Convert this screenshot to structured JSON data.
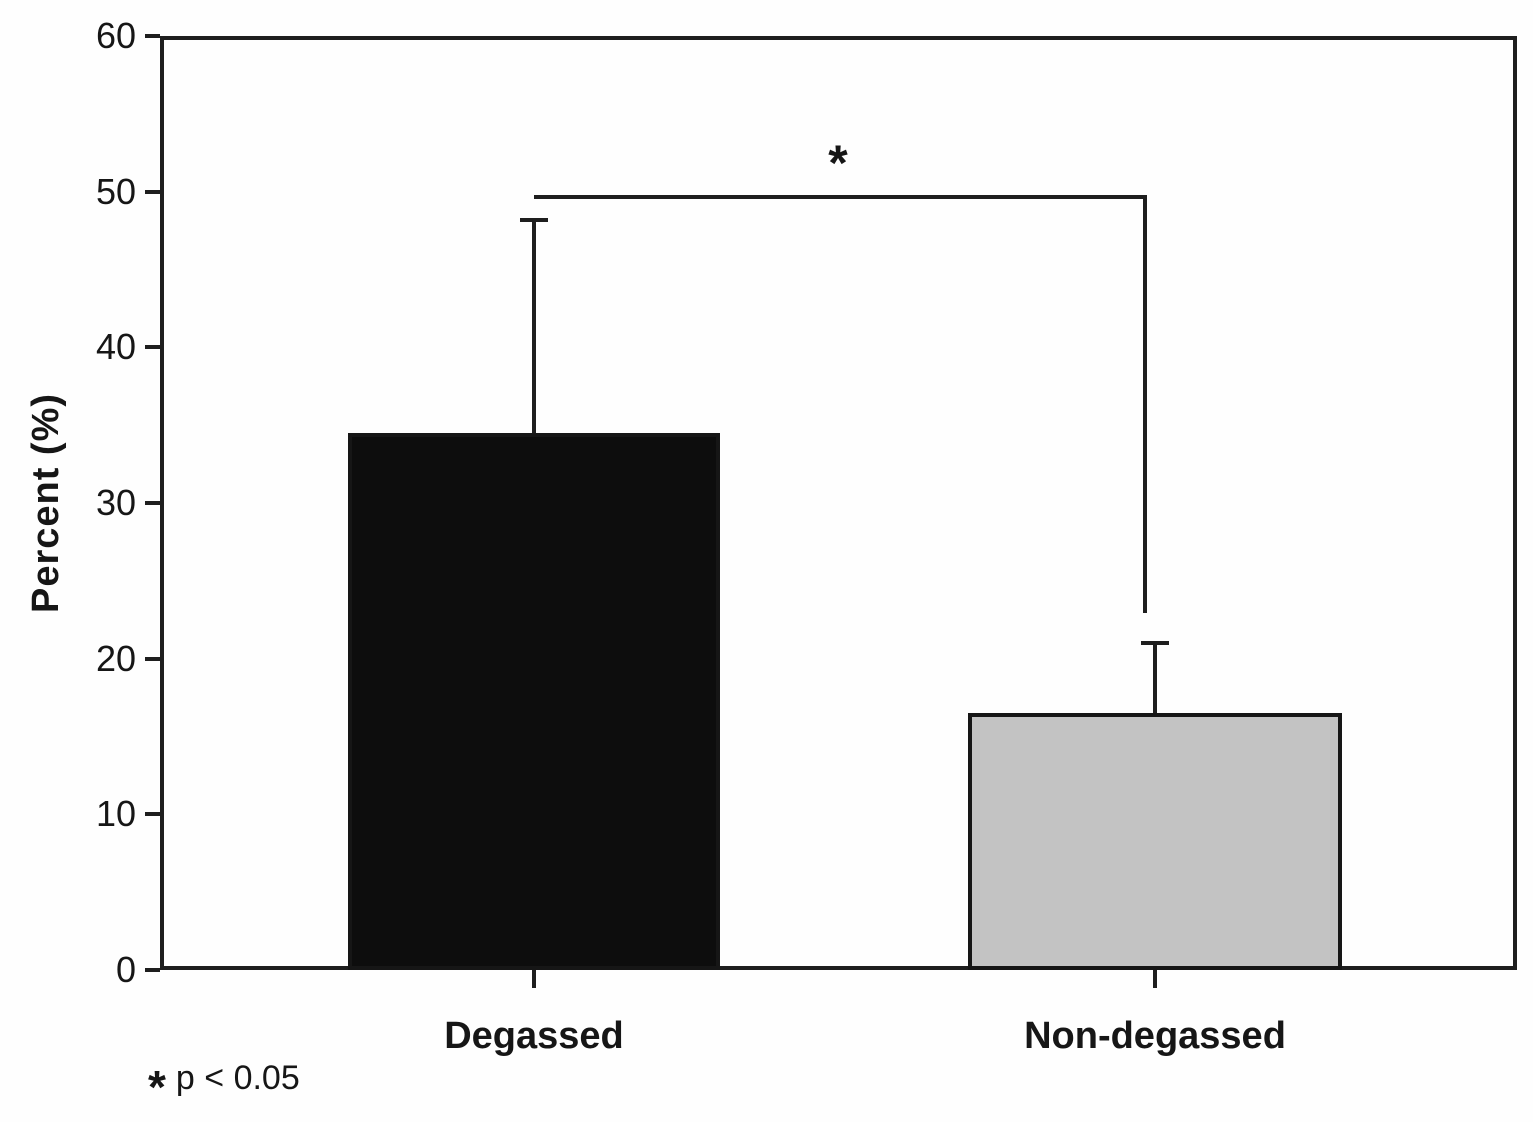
{
  "figure": {
    "background_color": "#fefefe"
  },
  "chart_data": {
    "type": "bar",
    "title": "",
    "xlabel": "",
    "ylabel": "Percent (%)",
    "categories": [
      "Degassed",
      "Non-degassed"
    ],
    "values": [
      34.5,
      16.5
    ],
    "error_top_values": [
      48.2,
      21.0
    ],
    "bar_colors": [
      "#0d0d0d",
      "#c3c3c3"
    ],
    "bar_border_color": "#161616",
    "axis_color": "#1e1e1e",
    "text_color": "#161616",
    "ylim": [
      0,
      60
    ],
    "yticks": [
      0,
      10,
      20,
      30,
      40,
      50,
      60
    ],
    "grid": false,
    "legend": false,
    "significance": {
      "marker": "*",
      "compares": [
        "Degassed",
        "Non-degassed"
      ]
    },
    "footnote": {
      "marker": "*",
      "text": "p < 0.05"
    }
  }
}
